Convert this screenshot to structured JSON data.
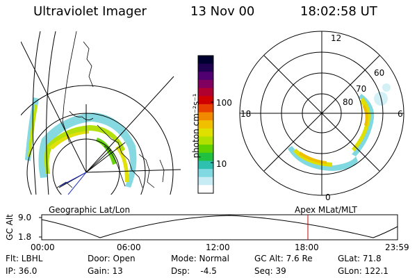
{
  "header": {
    "title": "Ultraviolet Imager",
    "date": "13 Nov 00",
    "time": "18:02:58 UT"
  },
  "colorbar": {
    "label": "photon cm⁻²s⁻¹",
    "ticks": [
      "100",
      "10"
    ],
    "colors": [
      "#000030",
      "#200050",
      "#500070",
      "#800060",
      "#b00030",
      "#d00000",
      "#e84000",
      "#f08800",
      "#f0c000",
      "#e0e000",
      "#b0e000",
      "#60d000",
      "#20c040",
      "#30c0b0",
      "#80d8e0",
      "#c8ecf4",
      "#ffffff"
    ]
  },
  "polar": {
    "hour_labels": {
      "top": "12",
      "left": "18",
      "right": "6",
      "bottom": "0"
    },
    "lat_labels": [
      "60",
      "70",
      "80"
    ]
  },
  "panel_labels": {
    "left": "Geographic Lat/Lon",
    "right": "Apex MLat/MLT"
  },
  "timeline": {
    "axis_label": "GC Alt",
    "y_ticks": [
      "9.0",
      "1.8"
    ],
    "x_ticks": [
      "00:00",
      "06:00",
      "12:00",
      "18:00",
      "23:59"
    ],
    "marker_color": "#c00000"
  },
  "info": {
    "row1": [
      "Flt: LBHL",
      "Door: Open",
      "Mode: Normal",
      "GC Alt: 7.6 Re",
      "GLat: 71.8"
    ],
    "row2": [
      "IP: 36.0",
      "Gain: 13",
      "Dsp:    -4.5",
      "Seq: 39",
      "GLon: 122.1"
    ]
  }
}
